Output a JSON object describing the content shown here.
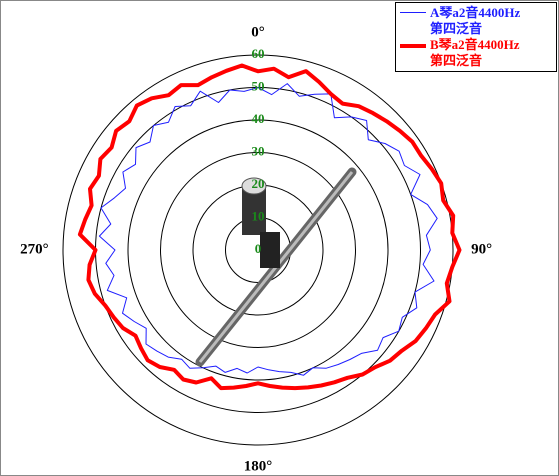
{
  "chart_data": {
    "type": "polar",
    "theta": [
      0,
      5,
      10,
      15,
      20,
      25,
      30,
      35,
      40,
      45,
      50,
      55,
      60,
      65,
      70,
      75,
      80,
      85,
      90,
      95,
      100,
      105,
      110,
      115,
      120,
      125,
      130,
      135,
      140,
      145,
      150,
      155,
      160,
      165,
      170,
      175,
      180,
      185,
      190,
      195,
      200,
      205,
      210,
      215,
      220,
      225,
      230,
      235,
      240,
      245,
      250,
      255,
      260,
      265,
      270,
      275,
      280,
      285,
      290,
      295,
      300,
      305,
      310,
      315,
      320,
      325,
      330,
      335,
      340,
      345,
      350,
      355
    ],
    "thetaticks": [
      {
        "value": 0,
        "label": "0°"
      },
      {
        "value": 90,
        "label": "90°"
      },
      {
        "value": 180,
        "label": "180°"
      },
      {
        "value": 270,
        "label": "270°"
      }
    ],
    "rlim": [
      0,
      60
    ],
    "rticks": [
      0,
      10,
      20,
      30,
      40,
      50,
      60
    ],
    "series": [
      {
        "name": "A琴a2音4400Hz\n第四泛音",
        "color": "#1f1fff",
        "width": 1,
        "values": [
          50,
          48,
          52,
          49,
          51,
          53,
          47,
          50,
          52,
          48,
          51,
          53,
          52,
          55,
          50,
          54,
          56,
          52,
          53,
          51,
          55,
          50,
          52,
          49,
          50,
          47,
          48,
          45,
          44,
          43,
          42,
          40,
          41,
          39,
          38,
          37,
          36,
          38,
          37,
          39,
          38,
          40,
          42,
          41,
          43,
          44,
          45,
          42,
          44,
          46,
          43,
          48,
          45,
          47,
          44,
          49,
          46,
          50,
          47,
          45,
          48,
          46,
          49,
          47,
          50,
          48,
          51,
          49,
          52,
          47,
          50,
          49
        ]
      },
      {
        "name": "B琴a2音4400Hz\n第四泛音",
        "color": "#ff0000",
        "width": 4,
        "values": [
          55,
          56,
          54,
          57,
          55,
          53,
          52,
          54,
          55,
          56,
          57,
          58,
          58,
          59,
          60,
          59,
          61,
          60,
          62,
          60,
          59,
          61,
          58,
          57,
          56,
          54,
          53,
          51,
          50,
          48,
          47,
          46,
          45,
          44,
          43,
          42,
          41,
          42,
          43,
          44,
          42,
          45,
          46,
          45,
          47,
          48,
          47,
          46,
          48,
          49,
          50,
          52,
          53,
          52,
          50,
          55,
          54,
          53,
          55,
          54,
          56,
          55,
          57,
          56,
          58,
          57,
          55,
          56,
          54,
          55,
          56,
          57
        ]
      }
    ]
  }
}
